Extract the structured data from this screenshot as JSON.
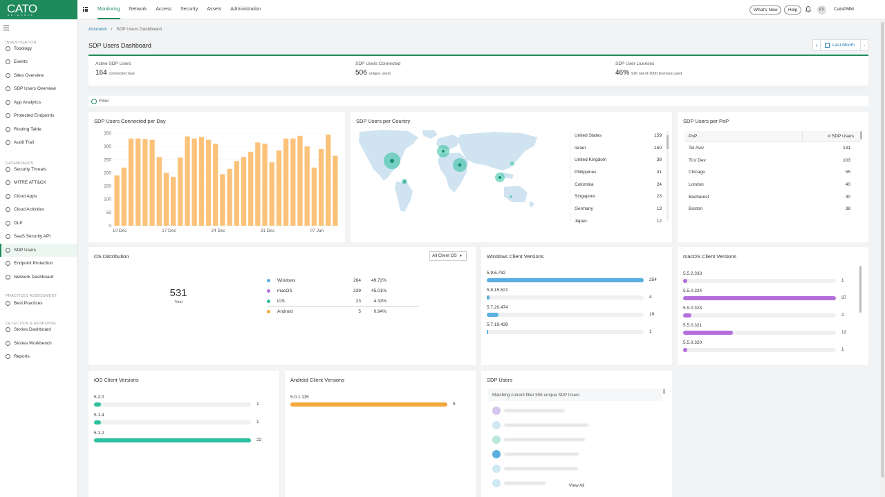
{
  "brand": {
    "logo": "CATO",
    "sub": "NETWORKS",
    "accent": "#1f8a5b"
  },
  "nav": [
    "Monitoring",
    "Network",
    "Access",
    "Security",
    "Assets",
    "Administration"
  ],
  "top": {
    "whats_new": "What's New",
    "help": "Help",
    "avatar": "ES",
    "user": "CatoPMM"
  },
  "sidebar": {
    "sections": [
      {
        "title": "INVESTIGATION",
        "items": [
          "Topology",
          "Events",
          "Sites Overview",
          "SDP Users Overview",
          "App Analytics",
          "Protected Endpoints",
          "Routing Table",
          "Audit Trail"
        ]
      },
      {
        "title": "DASHBOARDS",
        "items": [
          "Security Threats",
          "MITRE ATT&CK",
          "Cloud Apps",
          "Cloud Activities",
          "DLP",
          "SaaS Security API",
          "SDP Users",
          "Endpoint Protection",
          "Network Dashboard"
        ]
      },
      {
        "title": "PRACTICES ASSESSMENT",
        "items": [
          "Best Practices"
        ]
      },
      {
        "title": "DETECTION & RESPONSE",
        "items": [
          "Stories Dashboard",
          "Stories Workbench",
          "Reports"
        ]
      }
    ],
    "active": "SDP Users"
  },
  "breadcrumb": {
    "root": "Accounts",
    "sep": "/",
    "current": "SDP Users Dashboard"
  },
  "page_title": "SDP Users Dashboard",
  "date_range": "Last Month",
  "stats": [
    {
      "label": "Active SDP Users",
      "value": "164",
      "sub": "connected now"
    },
    {
      "label": "SDP Users Connected",
      "value": "506",
      "sub": "unique users"
    },
    {
      "label": "SDP User Licenses",
      "value": "46%",
      "sub": "926 out of 2000 licenses used"
    }
  ],
  "filter_label": "Filter",
  "users_per_day": {
    "title": "SDP Users Connected per Day"
  },
  "country": {
    "title": "SDP Users per Country",
    "rows": [
      {
        "name": "United States",
        "count": "159"
      },
      {
        "name": "Israel",
        "count": "150"
      },
      {
        "name": "United Kingdom",
        "count": "38"
      },
      {
        "name": "Philippines",
        "count": "31"
      },
      {
        "name": "Colombia",
        "count": "24"
      },
      {
        "name": "Singapore",
        "count": "23"
      },
      {
        "name": "Germany",
        "count": "13"
      },
      {
        "name": "Japan",
        "count": "12"
      }
    ]
  },
  "pop": {
    "title": "SDP Users per PoP",
    "col1": "PoP",
    "col2": "# SDP Users",
    "rows": [
      {
        "name": "Tel Aviv",
        "count": "131"
      },
      {
        "name": "TLV Dev",
        "count": "103"
      },
      {
        "name": "Chicago",
        "count": "55"
      },
      {
        "name": "London",
        "count": "40"
      },
      {
        "name": "Bucharest",
        "count": "40"
      },
      {
        "name": "Boston",
        "count": "38"
      }
    ]
  },
  "os": {
    "title": "OS Distribution",
    "select": "All Client OS",
    "total": "531",
    "total_label": "Total",
    "rows": [
      {
        "name": "Windows",
        "count": "264",
        "pct": "49.72%",
        "color": "#5aafe0",
        "value": 264
      },
      {
        "name": "macOS",
        "count": "239",
        "pct": "45.01%",
        "color": "#b46fdb",
        "value": 239
      },
      {
        "name": "iOS",
        "count": "23",
        "pct": "4.33%",
        "color": "#2ebf9f",
        "value": 23
      },
      {
        "name": "Android",
        "count": "5",
        "pct": "0.94%",
        "color": "#f0a83a",
        "value": 5
      }
    ]
  },
  "win": {
    "title": "Windows Client Versions",
    "color": "#5aafe0",
    "max": 254,
    "rows": [
      {
        "v": "5.9.6.782",
        "n": "254"
      },
      {
        "v": "5.8.15.621",
        "n": "4"
      },
      {
        "v": "5.7.20.474",
        "n": "19"
      },
      {
        "v": "5.7.19.439",
        "n": "1"
      }
    ]
  },
  "mac": {
    "title": "macOS Client Versions",
    "color": "#b46fdb",
    "max": 37,
    "rows": [
      {
        "v": "5.5.2.333",
        "n": "1"
      },
      {
        "v": "5.5.0.324",
        "n": "37"
      },
      {
        "v": "5.5.0.323",
        "n": "2"
      },
      {
        "v": "5.5.0.321",
        "n": "12"
      },
      {
        "v": "5.5.0.320",
        "n": "1"
      }
    ]
  },
  "ios": {
    "title": "iOS Client Versions",
    "color": "#2ebf9f",
    "max": 22,
    "rows": [
      {
        "v": "5.2.0",
        "n": "1"
      },
      {
        "v": "5.1.4",
        "n": "1"
      },
      {
        "v": "5.1.2",
        "n": "22"
      }
    ]
  },
  "android": {
    "title": "Android Client Versions",
    "color": "#f0a83a",
    "max": 5,
    "rows": [
      {
        "v": "5.0.1.115",
        "n": "5"
      }
    ]
  },
  "sdp_users": {
    "title": "SDP Users",
    "matching": "Matching current filter 506 unique SDP Users",
    "view_all": "View All"
  },
  "chart_data": {
    "type": "bar",
    "title": "SDP Users Connected per Day",
    "x_tick_labels": [
      "10 Dec",
      "17 Dec",
      "24 Dec",
      "31 Dec",
      "07 Jan"
    ],
    "ylim": [
      0,
      350
    ],
    "yticks": [
      0,
      50,
      100,
      150,
      200,
      250,
      300,
      350
    ],
    "values": [
      190,
      220,
      330,
      330,
      328,
      325,
      260,
      200,
      185,
      258,
      338,
      330,
      336,
      325,
      310,
      195,
      215,
      245,
      260,
      280,
      315,
      310,
      240,
      285,
      330,
      330,
      340,
      300,
      220,
      290,
      345,
      265
    ],
    "color": "#fcc27a"
  }
}
